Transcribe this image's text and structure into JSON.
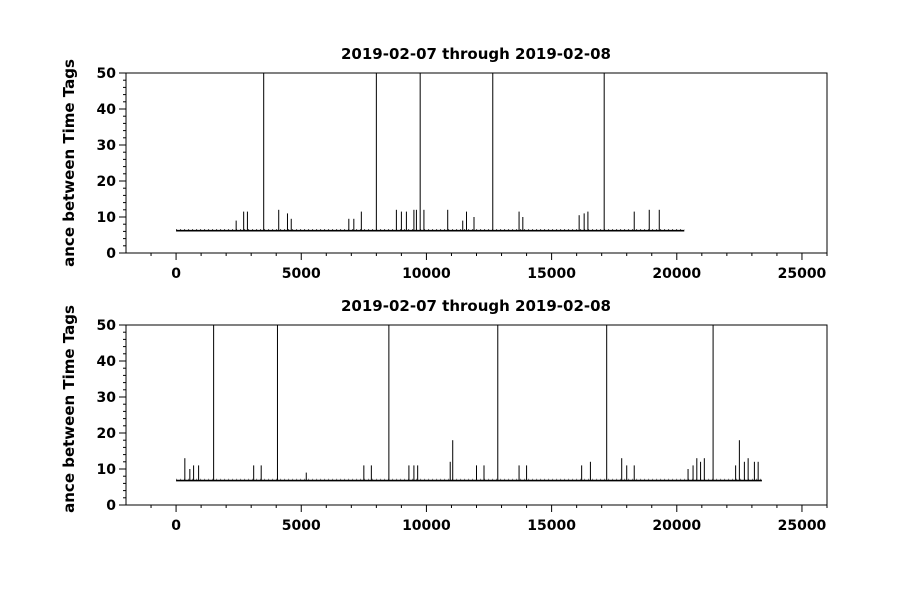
{
  "chart_data": [
    {
      "type": "line",
      "title": "2019-02-07 through 2019-02-08",
      "ylabel": "ance between Time Tags",
      "xlim": [
        -2000,
        26000
      ],
      "ylim": [
        0,
        50
      ],
      "xticks": [
        0,
        5000,
        10000,
        15000,
        20000,
        25000
      ],
      "yticks": [
        0,
        10,
        20,
        30,
        40,
        50
      ],
      "x_extent": [
        0,
        20300
      ],
      "baseline": 6.2,
      "spikes": [
        {
          "x": 2400,
          "y": 9
        },
        {
          "x": 2700,
          "y": 11.5
        },
        {
          "x": 2850,
          "y": 11.5
        },
        {
          "x": 3500,
          "y": 50
        },
        {
          "x": 4100,
          "y": 12
        },
        {
          "x": 4450,
          "y": 11
        },
        {
          "x": 4600,
          "y": 9.5
        },
        {
          "x": 6900,
          "y": 9.5
        },
        {
          "x": 7100,
          "y": 9.5
        },
        {
          "x": 7400,
          "y": 11.5
        },
        {
          "x": 8000,
          "y": 50
        },
        {
          "x": 8800,
          "y": 12
        },
        {
          "x": 9000,
          "y": 11.5
        },
        {
          "x": 9200,
          "y": 11.5
        },
        {
          "x": 9500,
          "y": 12
        },
        {
          "x": 9600,
          "y": 12
        },
        {
          "x": 9750,
          "y": 50
        },
        {
          "x": 9900,
          "y": 12
        },
        {
          "x": 10850,
          "y": 12
        },
        {
          "x": 11450,
          "y": 9
        },
        {
          "x": 11600,
          "y": 11.5
        },
        {
          "x": 11900,
          "y": 10
        },
        {
          "x": 12650,
          "y": 50
        },
        {
          "x": 13700,
          "y": 11.5
        },
        {
          "x": 13850,
          "y": 10
        },
        {
          "x": 16100,
          "y": 10.5
        },
        {
          "x": 16300,
          "y": 11
        },
        {
          "x": 16450,
          "y": 11.5
        },
        {
          "x": 17100,
          "y": 50
        },
        {
          "x": 18300,
          "y": 11.5
        },
        {
          "x": 18900,
          "y": 12
        },
        {
          "x": 19300,
          "y": 12
        }
      ]
    },
    {
      "type": "line",
      "title": "2019-02-07 through 2019-02-08",
      "ylabel": "ance between Time Tags",
      "xlim": [
        -2000,
        26000
      ],
      "ylim": [
        0,
        50
      ],
      "xticks": [
        0,
        5000,
        10000,
        15000,
        20000,
        25000
      ],
      "yticks": [
        0,
        10,
        20,
        30,
        40,
        50
      ],
      "x_extent": [
        0,
        23400
      ],
      "baseline": 6.8,
      "spikes": [
        {
          "x": 350,
          "y": 13
        },
        {
          "x": 550,
          "y": 10
        },
        {
          "x": 700,
          "y": 11
        },
        {
          "x": 900,
          "y": 11
        },
        {
          "x": 1500,
          "y": 50
        },
        {
          "x": 3100,
          "y": 11
        },
        {
          "x": 3400,
          "y": 11
        },
        {
          "x": 4050,
          "y": 50
        },
        {
          "x": 5200,
          "y": 9
        },
        {
          "x": 7500,
          "y": 11
        },
        {
          "x": 7800,
          "y": 11
        },
        {
          "x": 8500,
          "y": 50
        },
        {
          "x": 9300,
          "y": 11
        },
        {
          "x": 9500,
          "y": 11
        },
        {
          "x": 9650,
          "y": 11
        },
        {
          "x": 10950,
          "y": 12
        },
        {
          "x": 11050,
          "y": 18
        },
        {
          "x": 12000,
          "y": 11
        },
        {
          "x": 12300,
          "y": 11
        },
        {
          "x": 12850,
          "y": 50
        },
        {
          "x": 13700,
          "y": 11
        },
        {
          "x": 14000,
          "y": 11
        },
        {
          "x": 16200,
          "y": 11
        },
        {
          "x": 16550,
          "y": 12
        },
        {
          "x": 17200,
          "y": 50
        },
        {
          "x": 17800,
          "y": 13
        },
        {
          "x": 18000,
          "y": 11
        },
        {
          "x": 18300,
          "y": 11
        },
        {
          "x": 20450,
          "y": 10
        },
        {
          "x": 20650,
          "y": 11
        },
        {
          "x": 20800,
          "y": 13
        },
        {
          "x": 20950,
          "y": 12
        },
        {
          "x": 21100,
          "y": 13
        },
        {
          "x": 21450,
          "y": 50
        },
        {
          "x": 22350,
          "y": 11
        },
        {
          "x": 22500,
          "y": 18
        },
        {
          "x": 22700,
          "y": 12
        },
        {
          "x": 22850,
          "y": 13
        },
        {
          "x": 23100,
          "y": 12
        },
        {
          "x": 23250,
          "y": 12
        }
      ]
    }
  ]
}
